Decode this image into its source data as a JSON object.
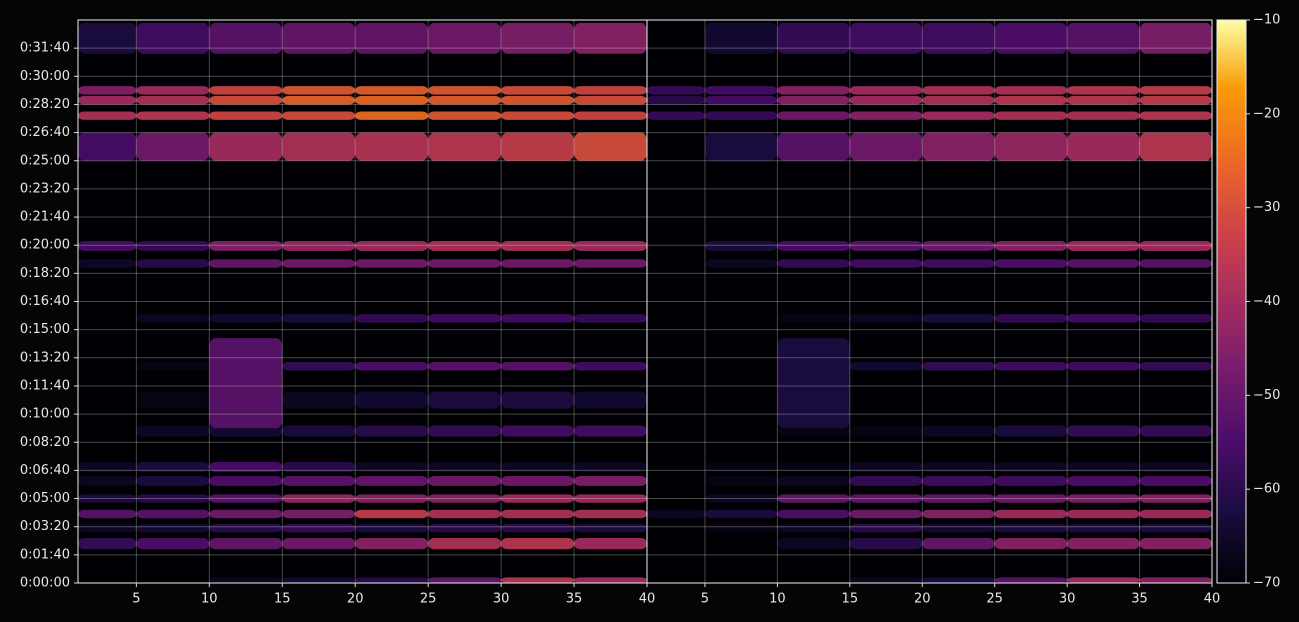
{
  "chart_data": {
    "type": "heatmap",
    "grid": true,
    "colormap": "inferno",
    "ylim": [
      0,
      2000
    ],
    "yticks": [
      {
        "value": 0,
        "label": "0:00:00"
      },
      {
        "value": 100,
        "label": "0:01:40"
      },
      {
        "value": 200,
        "label": "0:03:20"
      },
      {
        "value": 300,
        "label": "0:05:00"
      },
      {
        "value": 400,
        "label": "0:06:40"
      },
      {
        "value": 500,
        "label": "0:08:20"
      },
      {
        "value": 600,
        "label": "0:10:00"
      },
      {
        "value": 700,
        "label": "0:11:40"
      },
      {
        "value": 800,
        "label": "0:13:20"
      },
      {
        "value": 900,
        "label": "0:15:00"
      },
      {
        "value": 1000,
        "label": "0:16:40"
      },
      {
        "value": 1100,
        "label": "0:18:20"
      },
      {
        "value": 1200,
        "label": "0:20:00"
      },
      {
        "value": 1300,
        "label": "0:21:40"
      },
      {
        "value": 1400,
        "label": "0:23:20"
      },
      {
        "value": 1500,
        "label": "0:25:00"
      },
      {
        "value": 1600,
        "label": "0:26:40"
      },
      {
        "value": 1700,
        "label": "0:28:20"
      },
      {
        "value": 1800,
        "label": "0:30:00"
      },
      {
        "value": 1900,
        "label": "0:31:40"
      }
    ],
    "colorbar": {
      "vlim": [
        -70,
        -10
      ],
      "ticks": [
        {
          "value": -70,
          "label": "−70"
        },
        {
          "value": -60,
          "label": "−60"
        },
        {
          "value": -50,
          "label": "−50"
        },
        {
          "value": -40,
          "label": "−40"
        },
        {
          "value": -30,
          "label": "−30"
        },
        {
          "value": -20,
          "label": "−20"
        },
        {
          "value": -10,
          "label": "−10"
        }
      ]
    },
    "panels": [
      {
        "xlim": [
          1,
          40
        ],
        "xticks": [
          5,
          10,
          15,
          20,
          25,
          30,
          35,
          40
        ],
        "x_bins": [
          1,
          5,
          10,
          15,
          20,
          25,
          30,
          35,
          40
        ],
        "rows": [
          {
            "y": [
              1880,
              1990
            ],
            "values": [
              -62,
              -56,
              -52,
              -50,
              -50,
              -48,
              -46,
              -44
            ]
          },
          {
            "y": [
              1735,
              1765
            ],
            "values": [
              -45,
              -40,
              -32,
              -28,
              -27,
              -28,
              -30,
              -32
            ]
          },
          {
            "y": [
              1700,
              1730
            ],
            "values": [
              -40,
              -38,
              -30,
              -26,
              -25,
              -27,
              -28,
              -30
            ]
          },
          {
            "y": [
              1645,
              1675
            ],
            "values": [
              -38,
              -36,
              -32,
              -30,
              -24,
              -28,
              -30,
              -32
            ]
          },
          {
            "y": [
              1500,
              1600
            ],
            "values": [
              -55,
              -48,
              -40,
              -38,
              -37,
              -36,
              -34,
              -30
            ]
          },
          {
            "y": [
              1180,
              1215
            ],
            "values": [
              -55,
              -58,
              -45,
              -42,
              -40,
              -38,
              -38,
              -40
            ]
          },
          {
            "y": [
              1120,
              1150
            ],
            "values": [
              -65,
              -60,
              -50,
              -48,
              -48,
              -48,
              -48,
              -48
            ]
          },
          {
            "y": [
              925,
              955
            ],
            "values": [
              null,
              -66,
              -64,
              -62,
              -58,
              -56,
              -56,
              -58
            ]
          },
          {
            "y": [
              755,
              785
            ],
            "values": [
              null,
              -68,
              -62,
              -58,
              -54,
              -52,
              -52,
              -56
            ]
          },
          {
            "y": [
              620,
              680
            ],
            "values": [
              null,
              -68,
              -66,
              -66,
              -64,
              -62,
              -62,
              -64
            ]
          },
          {
            "y": [
              520,
              560
            ],
            "values": [
              null,
              -66,
              -64,
              -62,
              -60,
              -58,
              -56,
              -56
            ]
          },
          {
            "y": [
              550,
              870
            ],
            "values": [
              null,
              null,
              -52,
              null,
              null,
              null,
              null,
              null
            ]
          },
          {
            "y": [
              395,
              430
            ],
            "values": [
              -66,
              -62,
              -55,
              -60,
              -66,
              -66,
              -66,
              -66
            ]
          },
          {
            "y": [
              345,
              380
            ],
            "values": [
              -66,
              -62,
              -54,
              -52,
              -50,
              -48,
              -48,
              -46
            ]
          },
          {
            "y": [
              285,
              315
            ],
            "values": [
              -62,
              -60,
              -52,
              -42,
              -44,
              -44,
              -40,
              -40
            ]
          },
          {
            "y": [
              230,
              260
            ],
            "values": [
              -52,
              -52,
              -48,
              -46,
              -34,
              -38,
              -38,
              -38
            ]
          },
          {
            "y": [
              180,
              210
            ],
            "values": [
              -66,
              -64,
              -60,
              -58,
              -62,
              -60,
              -60,
              -62
            ]
          },
          {
            "y": [
              120,
              160
            ],
            "values": [
              -58,
              -54,
              -50,
              -48,
              -44,
              -38,
              -36,
              -40
            ]
          },
          {
            "y": [
              0,
              20
            ],
            "values": [
              null,
              null,
              -66,
              -64,
              -60,
              -50,
              -36,
              -40
            ]
          }
        ]
      },
      {
        "xlim": [
          1,
          40
        ],
        "xticks": [
          5,
          10,
          15,
          20,
          25,
          30,
          35,
          40
        ],
        "x_bins": [
          1,
          5,
          10,
          15,
          20,
          25,
          30,
          35,
          40
        ],
        "rows": [
          {
            "y": [
              1880,
              1990
            ],
            "values": [
              null,
              -64,
              -58,
              -56,
              -56,
              -54,
              -52,
              -46
            ]
          },
          {
            "y": [
              1735,
              1765
            ],
            "values": [
              -58,
              -56,
              -44,
              -40,
              -38,
              -38,
              -36,
              -34
            ]
          },
          {
            "y": [
              1700,
              1730
            ],
            "values": [
              -60,
              -56,
              -44,
              -40,
              -38,
              -36,
              -36,
              -34
            ]
          },
          {
            "y": [
              1645,
              1675
            ],
            "values": [
              -58,
              -58,
              -48,
              -44,
              -40,
              -38,
              -38,
              -36
            ]
          },
          {
            "y": [
              1500,
              1600
            ],
            "values": [
              null,
              -62,
              -52,
              -48,
              -44,
              -42,
              -40,
              -36
            ]
          },
          {
            "y": [
              1180,
              1215
            ],
            "values": [
              null,
              -62,
              -55,
              -52,
              -48,
              -44,
              -40,
              -40
            ]
          },
          {
            "y": [
              1120,
              1150
            ],
            "values": [
              null,
              -66,
              -58,
              -56,
              -56,
              -54,
              -52,
              -52
            ]
          },
          {
            "y": [
              925,
              955
            ],
            "values": [
              null,
              null,
              -68,
              -66,
              -62,
              -58,
              -56,
              -58
            ]
          },
          {
            "y": [
              755,
              785
            ],
            "values": [
              null,
              null,
              -68,
              -64,
              -58,
              -56,
              -56,
              -58
            ]
          },
          {
            "y": [
              520,
              560
            ],
            "values": [
              null,
              null,
              -68,
              -68,
              -66,
              -62,
              -58,
              -58
            ]
          },
          {
            "y": [
              550,
              870
            ],
            "values": [
              null,
              null,
              -62,
              null,
              null,
              null,
              null,
              null
            ]
          },
          {
            "y": [
              395,
              430
            ],
            "values": [
              null,
              -68,
              -68,
              -66,
              -66,
              -66,
              -66,
              -66
            ]
          },
          {
            "y": [
              345,
              380
            ],
            "values": [
              null,
              -68,
              -66,
              -58,
              -56,
              -56,
              -54,
              -54
            ]
          },
          {
            "y": [
              285,
              315
            ],
            "values": [
              null,
              -66,
              -50,
              -50,
              -50,
              -48,
              -46,
              -44
            ]
          },
          {
            "y": [
              230,
              260
            ],
            "values": [
              -66,
              -62,
              -54,
              -48,
              -44,
              -40,
              -40,
              -40
            ]
          },
          {
            "y": [
              180,
              210
            ],
            "values": [
              null,
              -68,
              -66,
              -60,
              -64,
              -62,
              -62,
              -62
            ]
          },
          {
            "y": [
              120,
              160
            ],
            "values": [
              null,
              null,
              -66,
              -60,
              -50,
              -44,
              -44,
              -44
            ]
          },
          {
            "y": [
              0,
              20
            ],
            "values": [
              null,
              null,
              null,
              -66,
              -62,
              -52,
              -40,
              -44
            ]
          }
        ]
      }
    ]
  }
}
